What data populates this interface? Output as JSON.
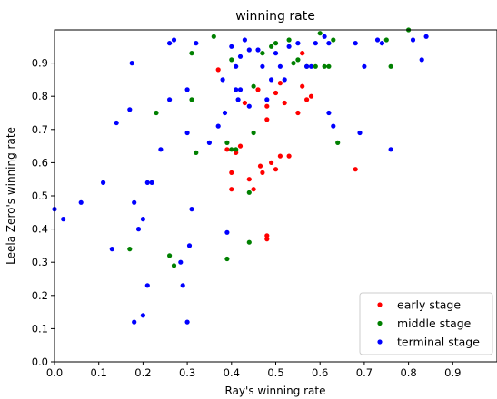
{
  "chart_data": {
    "type": "scatter",
    "title": "winning rate",
    "xlabel": "Ray's winning rate",
    "ylabel": "Leela Zero's winning rate",
    "xlim": [
      0.0,
      1.0
    ],
    "ylim": [
      0.0,
      1.0
    ],
    "xticks": [
      "0.0",
      "0.1",
      "0.2",
      "0.3",
      "0.4",
      "0.5",
      "0.6",
      "0.7",
      "0.8",
      "0.9"
    ],
    "yticks": [
      "0.0",
      "0.1",
      "0.2",
      "0.3",
      "0.4",
      "0.5",
      "0.6",
      "0.7",
      "0.8",
      "0.9"
    ],
    "grid": false,
    "legend_position": "bottom-right",
    "series": [
      {
        "name": "early stage",
        "color": "#ff0000",
        "points": [
          [
            0.37,
            0.88
          ],
          [
            0.39,
            0.64
          ],
          [
            0.4,
            0.57
          ],
          [
            0.4,
            0.52
          ],
          [
            0.41,
            0.63
          ],
          [
            0.42,
            0.65
          ],
          [
            0.43,
            0.78
          ],
          [
            0.44,
            0.55
          ],
          [
            0.45,
            0.52
          ],
          [
            0.46,
            0.82
          ],
          [
            0.465,
            0.59
          ],
          [
            0.47,
            0.57
          ],
          [
            0.48,
            0.37
          ],
          [
            0.48,
            0.38
          ],
          [
            0.48,
            0.73
          ],
          [
            0.48,
            0.77
          ],
          [
            0.49,
            0.6
          ],
          [
            0.5,
            0.58
          ],
          [
            0.5,
            0.81
          ],
          [
            0.51,
            0.62
          ],
          [
            0.51,
            0.84
          ],
          [
            0.52,
            0.78
          ],
          [
            0.53,
            0.62
          ],
          [
            0.55,
            0.75
          ],
          [
            0.56,
            0.83
          ],
          [
            0.56,
            0.93
          ],
          [
            0.57,
            0.79
          ],
          [
            0.58,
            0.8
          ],
          [
            0.68,
            0.58
          ]
        ]
      },
      {
        "name": "middle stage",
        "color": "#008000",
        "points": [
          [
            0.17,
            0.34
          ],
          [
            0.23,
            0.75
          ],
          [
            0.26,
            0.32
          ],
          [
            0.27,
            0.29
          ],
          [
            0.31,
            0.79
          ],
          [
            0.31,
            0.93
          ],
          [
            0.32,
            0.63
          ],
          [
            0.36,
            0.98
          ],
          [
            0.39,
            0.66
          ],
          [
            0.39,
            0.31
          ],
          [
            0.4,
            0.91
          ],
          [
            0.4,
            0.64
          ],
          [
            0.41,
            0.64
          ],
          [
            0.44,
            0.51
          ],
          [
            0.44,
            0.36
          ],
          [
            0.45,
            0.83
          ],
          [
            0.45,
            0.69
          ],
          [
            0.47,
            0.93
          ],
          [
            0.49,
            0.95
          ],
          [
            0.5,
            0.96
          ],
          [
            0.53,
            0.97
          ],
          [
            0.54,
            0.9
          ],
          [
            0.55,
            0.91
          ],
          [
            0.57,
            0.89
          ],
          [
            0.59,
            0.89
          ],
          [
            0.6,
            0.99
          ],
          [
            0.61,
            0.89
          ],
          [
            0.62,
            0.89
          ],
          [
            0.63,
            0.97
          ],
          [
            0.64,
            0.66
          ],
          [
            0.75,
            0.97
          ],
          [
            0.76,
            0.89
          ],
          [
            0.8,
            1.0
          ]
        ]
      },
      {
        "name": "terminal stage",
        "color": "#0000ff",
        "points": [
          [
            0.0,
            0.46
          ],
          [
            0.02,
            0.43
          ],
          [
            0.06,
            0.48
          ],
          [
            0.11,
            0.54
          ],
          [
            0.13,
            0.34
          ],
          [
            0.14,
            0.72
          ],
          [
            0.17,
            0.76
          ],
          [
            0.175,
            0.9
          ],
          [
            0.18,
            0.12
          ],
          [
            0.18,
            0.48
          ],
          [
            0.19,
            0.4
          ],
          [
            0.2,
            0.43
          ],
          [
            0.2,
            0.14
          ],
          [
            0.21,
            0.23
          ],
          [
            0.21,
            0.54
          ],
          [
            0.22,
            0.54
          ],
          [
            0.24,
            0.64
          ],
          [
            0.26,
            0.79
          ],
          [
            0.26,
            0.96
          ],
          [
            0.27,
            0.97
          ],
          [
            0.285,
            0.3
          ],
          [
            0.29,
            0.23
          ],
          [
            0.3,
            0.12
          ],
          [
            0.3,
            0.82
          ],
          [
            0.3,
            0.69
          ],
          [
            0.305,
            0.35
          ],
          [
            0.31,
            0.46
          ],
          [
            0.32,
            0.96
          ],
          [
            0.35,
            0.66
          ],
          [
            0.37,
            0.71
          ],
          [
            0.38,
            0.85
          ],
          [
            0.385,
            0.75
          ],
          [
            0.39,
            0.39
          ],
          [
            0.4,
            0.95
          ],
          [
            0.41,
            0.82
          ],
          [
            0.41,
            0.89
          ],
          [
            0.415,
            0.79
          ],
          [
            0.42,
            0.82
          ],
          [
            0.42,
            0.92
          ],
          [
            0.43,
            0.97
          ],
          [
            0.44,
            0.94
          ],
          [
            0.44,
            0.77
          ],
          [
            0.46,
            0.94
          ],
          [
            0.47,
            0.89
          ],
          [
            0.48,
            0.79
          ],
          [
            0.49,
            0.85
          ],
          [
            0.5,
            0.93
          ],
          [
            0.51,
            0.89
          ],
          [
            0.52,
            0.85
          ],
          [
            0.53,
            0.95
          ],
          [
            0.55,
            0.96
          ],
          [
            0.57,
            0.89
          ],
          [
            0.58,
            0.89
          ],
          [
            0.59,
            0.96
          ],
          [
            0.61,
            0.98
          ],
          [
            0.62,
            0.96
          ],
          [
            0.62,
            0.75
          ],
          [
            0.63,
            0.71
          ],
          [
            0.68,
            0.96
          ],
          [
            0.69,
            0.69
          ],
          [
            0.7,
            0.89
          ],
          [
            0.73,
            0.97
          ],
          [
            0.74,
            0.96
          ],
          [
            0.76,
            0.64
          ],
          [
            0.81,
            0.97
          ],
          [
            0.83,
            0.91
          ],
          [
            0.84,
            0.98
          ]
        ]
      }
    ]
  }
}
